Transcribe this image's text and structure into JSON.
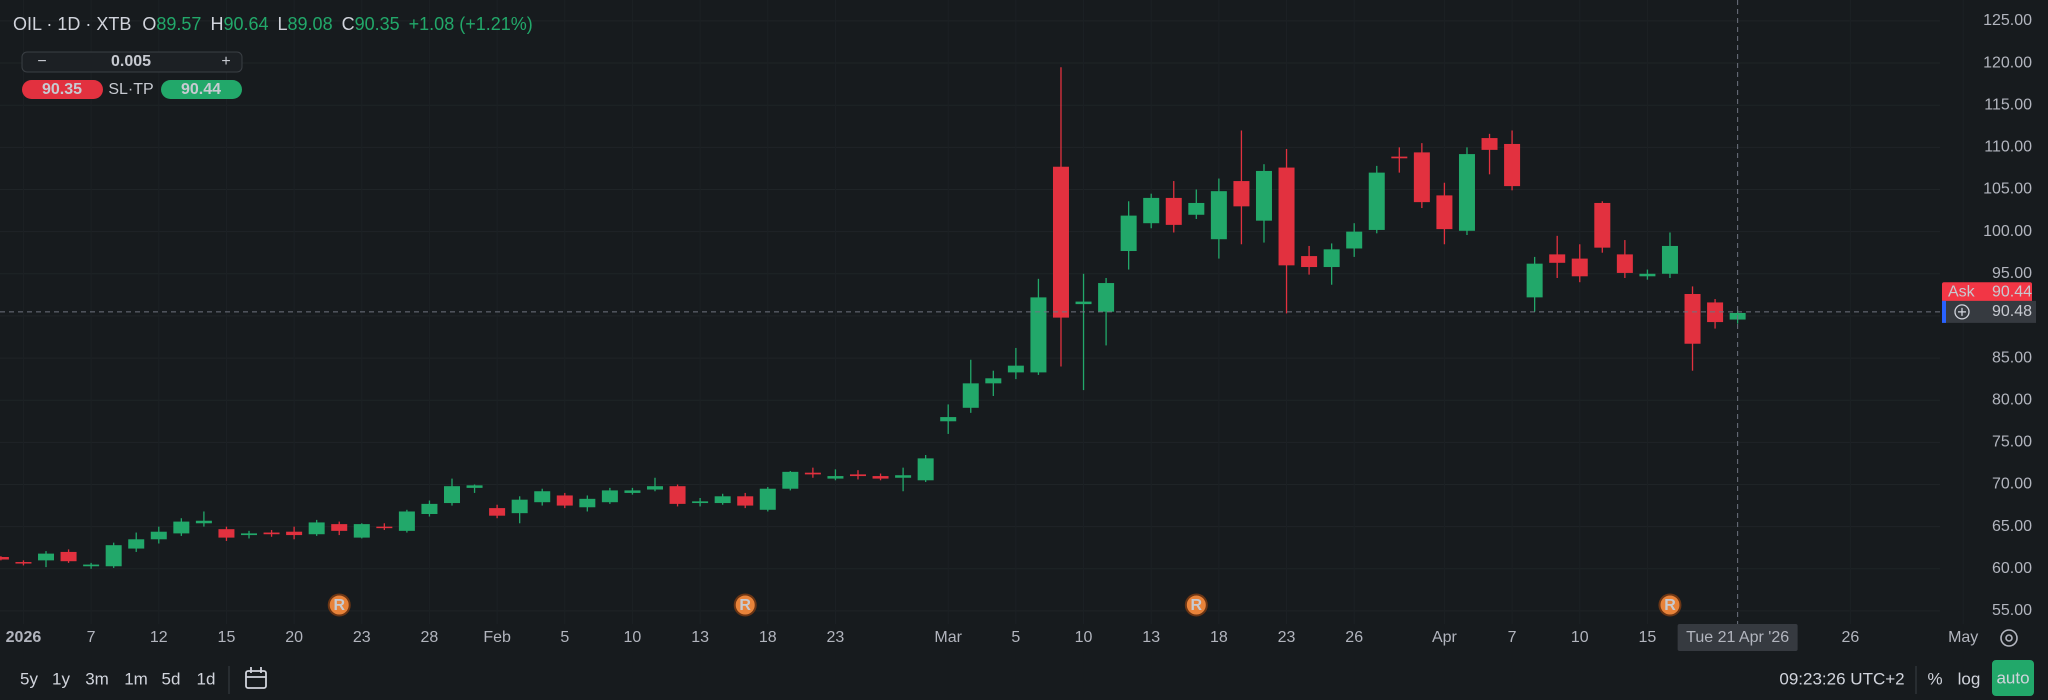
{
  "chart_data": {
    "type": "candlestick",
    "up_color": "#22a86a",
    "down_color": "#e2313f",
    "categories": [
      null,
      "2026",
      null,
      null,
      "7",
      null,
      null,
      "12",
      null,
      null,
      "15",
      null,
      null,
      "20",
      null,
      null,
      "23",
      null,
      null,
      "28",
      null,
      null,
      "Feb",
      null,
      null,
      "5",
      null,
      null,
      "10",
      null,
      null,
      "13",
      null,
      null,
      "18",
      null,
      null,
      "23",
      null,
      null,
      null,
      null,
      "Mar",
      null,
      null,
      "5",
      null,
      null,
      "10",
      null,
      null,
      "13",
      null,
      null,
      "18",
      null,
      null,
      "23",
      null,
      null,
      "26",
      null,
      null,
      null,
      "Apr",
      null,
      null,
      "7",
      null,
      null,
      "10",
      null,
      null,
      "15",
      null,
      null,
      null,
      "Tue 21 Apr '26",
      null,
      null,
      null,
      null,
      "26",
      null,
      null,
      null,
      null,
      "May"
    ],
    "open": [
      61.4,
      60.8,
      61.0,
      62.0,
      60.3,
      60.3,
      62.4,
      63.5,
      64.2,
      65.4,
      64.7,
      64.0,
      64.3,
      64.4,
      64.1,
      65.3,
      63.7,
      65.0,
      64.5,
      66.5,
      67.8,
      69.6,
      67.2,
      66.6,
      67.9,
      68.7,
      67.3,
      67.9,
      69.0,
      69.4,
      69.8,
      67.8,
      67.8,
      68.6,
      67.0,
      69.5,
      71.4,
      70.7,
      71.2,
      71.0,
      70.8,
      70.5,
      77.5,
      79.1,
      82.0,
      83.3,
      83.3,
      107.7,
      91.4,
      90.5,
      97.7,
      101.0,
      104.0,
      102.0,
      99.1,
      106.0,
      101.3,
      107.6,
      97.1,
      95.8,
      98.0,
      100.2,
      108.9,
      109.4,
      104.3,
      100.1,
      111.1,
      110.4,
      92.2,
      97.3,
      96.8,
      103.4,
      97.3,
      94.7,
      95.0,
      92.6,
      91.6,
      89.57,
      null,
      null,
      null,
      null,
      null,
      null,
      null,
      null,
      null,
      null
    ],
    "high": [
      61.5,
      61.0,
      62.1,
      62.3,
      60.7,
      63.1,
      64.3,
      65.0,
      66.0,
      66.8,
      65.0,
      64.5,
      64.6,
      65.0,
      65.8,
      65.6,
      65.4,
      65.4,
      67.0,
      68.1,
      70.7,
      70.0,
      67.6,
      68.6,
      69.5,
      69.0,
      68.7,
      69.6,
      69.6,
      70.8,
      70.0,
      68.4,
      68.9,
      69.0,
      69.7,
      71.6,
      72.0,
      71.8,
      71.7,
      71.3,
      72.0,
      73.5,
      79.5,
      84.8,
      83.5,
      86.2,
      94.4,
      119.5,
      95.0,
      94.5,
      103.6,
      104.5,
      106.0,
      105.0,
      106.3,
      112.0,
      108.0,
      109.8,
      98.3,
      98.6,
      101.0,
      107.8,
      110.0,
      110.5,
      105.8,
      110.0,
      111.6,
      112.0,
      97.0,
      99.5,
      98.5,
      103.6,
      99.0,
      95.5,
      99.9,
      93.5,
      92.0,
      90.64,
      null,
      null,
      null,
      null,
      null,
      null,
      null,
      null,
      null,
      null
    ],
    "low": [
      61.0,
      60.4,
      60.2,
      60.7,
      60.0,
      60.1,
      62.0,
      63.0,
      63.9,
      65.0,
      63.3,
      63.6,
      63.8,
      63.5,
      63.9,
      64.0,
      63.6,
      64.6,
      64.3,
      66.2,
      67.5,
      69.0,
      66.0,
      65.4,
      67.5,
      67.2,
      66.8,
      67.7,
      68.8,
      69.2,
      67.4,
      67.4,
      67.6,
      67.2,
      66.8,
      69.3,
      70.8,
      70.5,
      70.6,
      70.5,
      69.2,
      70.3,
      76.0,
      78.5,
      80.5,
      82.5,
      83.0,
      84.0,
      81.2,
      86.5,
      95.5,
      100.4,
      99.9,
      101.5,
      96.8,
      98.5,
      98.7,
      90.3,
      94.9,
      93.7,
      97.0,
      99.8,
      107.0,
      102.8,
      98.5,
      99.6,
      106.8,
      104.9,
      90.5,
      94.5,
      94.0,
      97.5,
      94.5,
      94.3,
      94.5,
      83.5,
      88.5,
      89.08,
      null,
      null,
      null,
      null,
      null,
      null,
      null,
      null,
      null,
      null
    ],
    "close": [
      61.1,
      60.7,
      61.8,
      60.9,
      60.5,
      62.8,
      63.5,
      64.4,
      65.6,
      65.7,
      63.7,
      64.2,
      64.1,
      64.0,
      65.5,
      64.5,
      65.3,
      64.9,
      66.8,
      67.7,
      69.8,
      69.9,
      66.3,
      68.2,
      69.2,
      67.5,
      68.3,
      69.3,
      69.3,
      69.8,
      67.7,
      68.0,
      68.6,
      67.5,
      69.5,
      71.5,
      71.2,
      71.0,
      71.0,
      70.7,
      71.1,
      73.1,
      78.0,
      82.0,
      82.6,
      84.1,
      92.2,
      89.8,
      91.7,
      93.9,
      101.9,
      104.0,
      100.8,
      103.4,
      104.8,
      103.0,
      107.2,
      96.0,
      95.8,
      97.9,
      100.0,
      107.0,
      108.7,
      103.5,
      100.3,
      109.2,
      109.7,
      105.4,
      96.2,
      96.3,
      94.7,
      98.1,
      95.1,
      95.0,
      98.3,
      86.7,
      89.27,
      90.35,
      null,
      null,
      null,
      null,
      null,
      null,
      null,
      null,
      null,
      null
    ],
    "markers": [
      null,
      null,
      null,
      null,
      null,
      null,
      null,
      null,
      null,
      null,
      null,
      null,
      null,
      null,
      null,
      "R",
      null,
      null,
      null,
      null,
      null,
      null,
      null,
      null,
      null,
      null,
      null,
      null,
      null,
      null,
      null,
      null,
      null,
      "R",
      null,
      null,
      null,
      null,
      null,
      null,
      null,
      null,
      null,
      null,
      null,
      null,
      null,
      null,
      null,
      null,
      null,
      null,
      null,
      "R",
      null,
      null,
      null,
      null,
      null,
      null,
      null,
      null,
      null,
      null,
      null,
      null,
      null,
      null,
      null,
      null,
      null,
      null,
      null,
      null,
      "R",
      null,
      null,
      null,
      null,
      null,
      null,
      null,
      null,
      null,
      null,
      null,
      null,
      null
    ],
    "marker_color": "#e8833a",
    "ylim": [
      53.45,
      127.48
    ],
    "yticks": [
      {
        "value": 55,
        "label": "55.00"
      },
      {
        "value": 60,
        "label": "60.00"
      },
      {
        "value": 65,
        "label": "65.00"
      },
      {
        "value": 70,
        "label": "70.00"
      },
      {
        "value": 75,
        "label": "75.00"
      },
      {
        "value": 80,
        "label": "80.00"
      },
      {
        "value": 85,
        "label": "85.00"
      },
      {
        "value": 90,
        "label": "90.00"
      },
      {
        "value": 95,
        "label": "95.00"
      },
      {
        "value": 100,
        "label": "100.00"
      },
      {
        "value": 105,
        "label": "105.00"
      },
      {
        "value": 110,
        "label": "110.00"
      },
      {
        "value": 115,
        "label": "115.00"
      },
      {
        "value": 120,
        "label": "120.00"
      },
      {
        "value": 125,
        "label": "125.00"
      }
    ],
    "grid": true,
    "crosshair_price": 90.48,
    "ask": {
      "label": "Ask",
      "value": 90.44,
      "color": "#f23645"
    }
  },
  "ui": {
    "legend": {
      "symbol": "OIL · 1D · XTB",
      "ohlc_letters": [
        "O",
        "H",
        "L",
        "C"
      ],
      "change": "+1.08 (+1.21%)"
    },
    "trade": {
      "minus": "−",
      "volume": 0.005,
      "plus": "+",
      "sl_tp": "SL·TP"
    },
    "ranges": [
      "5y",
      "1y",
      "3m",
      "1m",
      "5d",
      "1d"
    ],
    "clock": "09:23:26 UTC+2",
    "scale_buttons": [
      "%",
      "log",
      "auto"
    ]
  }
}
